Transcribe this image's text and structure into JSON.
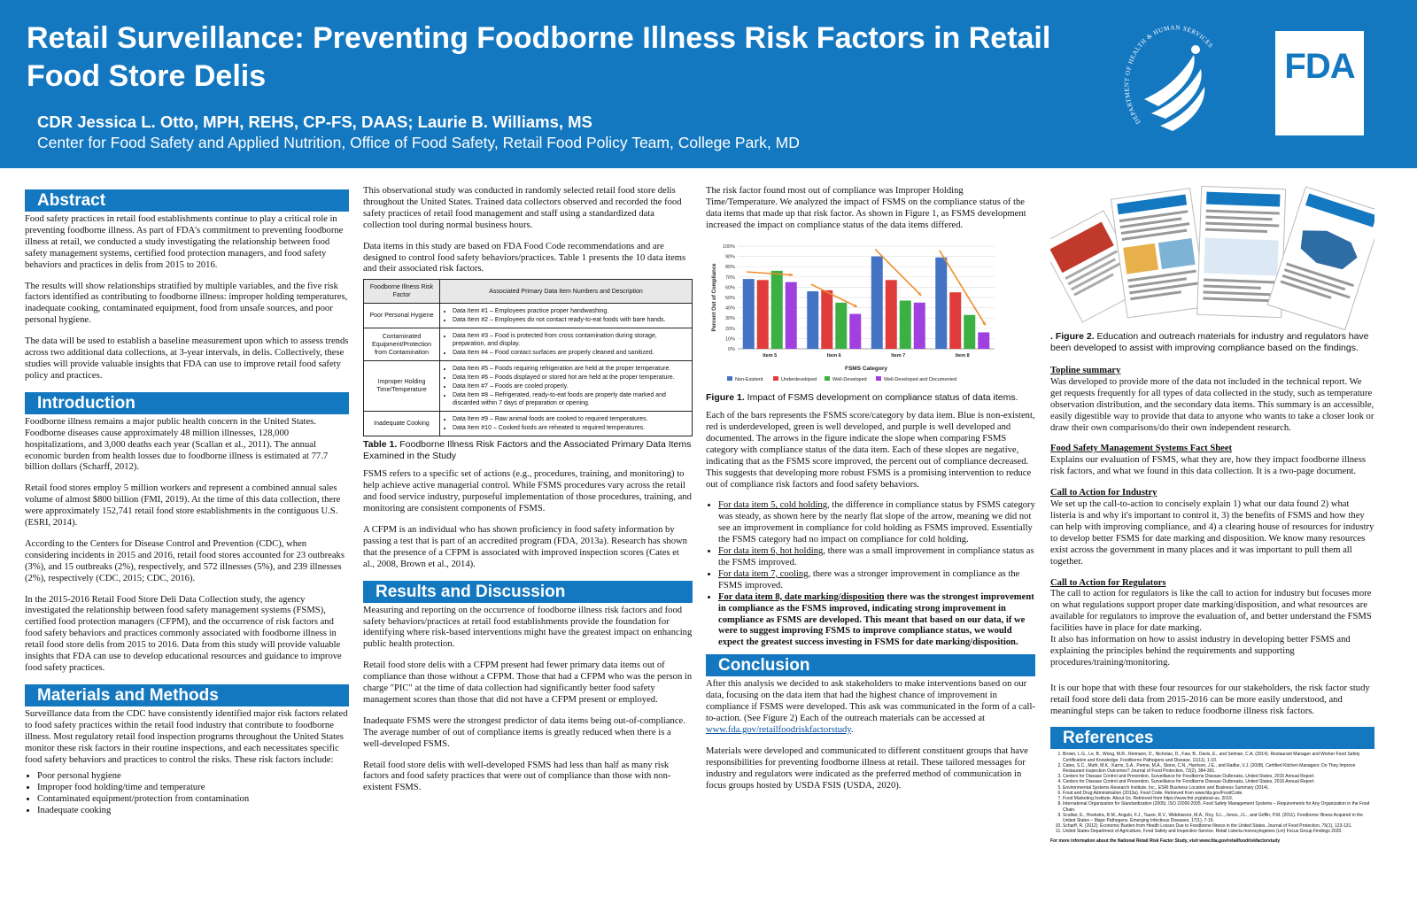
{
  "header": {
    "title": "Retail Surveillance: Preventing Foodborne Illness Risk Factors in Retail Food Store Delis",
    "authors": "CDR Jessica L. Otto, MPH, REHS, CP-FS, DAAS; Laurie B. Williams, MS",
    "affiliation": "Center for Food Safety and Applied Nutrition, Office of Food Safety, Retail Food Policy Team, College Park, MD",
    "seal_label": "DEPARTMENT OF HEALTH & HUMAN SERVICES-USA",
    "fda_logo": "FDA",
    "brand_color": "#1478c0"
  },
  "abstract": {
    "heading": "Abstract",
    "p1": "Food safety practices in retail food establishments continue to play a critical role in preventing foodborne illness. As part of FDA's commitment to preventing foodborne illness at retail, we conducted a study investigating the relationship between food safety management systems, certified food protection managers, and food safety behaviors and practices in delis from 2015 to 2016.",
    "p2": "The results will show relationships stratified by multiple variables, and the five risk factors identified as contributing to foodborne illness: improper holding temperatures, inadequate cooking, contaminated equipment, food from unsafe sources, and poor personal hygiene.",
    "p3": "The data will be used to establish a baseline measurement upon which to assess trends across two additional data collections, at 3-year intervals, in delis. Collectively, these studies will provide valuable insights that FDA can use to improve retail food safety policy and practices."
  },
  "introduction": {
    "heading": "Introduction",
    "p1": "Foodborne illness remains a major public health concern in the United States. Foodborne diseases cause approximately 48 million illnesses, 128,000 hospitalizations, and 3,000 deaths each year (Scallan et al., 2011). The annual economic burden from health losses due to foodborne illness is estimated at 77.7 billion dollars (Scharff, 2012).",
    "p2": "Retail food stores employ 5 million workers and represent a combined annual sales volume of almost $800 billion (FMI, 2019). At the time of this data collection, there were approximately 152,741 retail food store establishments in the contiguous U.S. (ESRI, 2014).",
    "p3": "According to the Centers for Disease Control and Prevention (CDC), when considering incidents in 2015 and 2016, retail food stores accounted for 23 outbreaks (3%), and 15 outbreaks (2%), respectively, and 572 illnesses (5%), and 239 illnesses (2%), respectively (CDC, 2015; CDC, 2016).",
    "p4": "In the 2015-2016 Retail Food Store Deli Data Collection study, the agency investigated the relationship between food safety management systems (FSMS), certified food protection managers (CFPM), and the occurrence of risk factors and food safety behaviors and practices commonly associated with foodborne illness in retail food store delis from 2015 to 2016. Data from this study will provide valuable insights that FDA can use to develop educational resources and guidance to improve food safety practices."
  },
  "methods": {
    "heading": "Materials and Methods",
    "p1": "Surveillance data from the CDC have consistently identified major risk factors related to food safety practices within the retail food industry that contribute to foodborne illness. Most regulatory retail food inspection programs throughout the United States monitor these risk factors in their routine inspections, and each necessitates specific food safety behaviors and practices to control the risks. These risk factors include:",
    "bullets": [
      "Poor personal hygiene",
      "Improper food holding/time and temperature",
      "Contaminated equipment/protection from contamination",
      "Inadequate cooking"
    ],
    "p2": "This observational study was conducted in randomly selected retail food store delis throughout the United States. Trained data collectors observed and recorded the food safety practices of retail food management and staff using a standardized data collection tool during normal business hours.",
    "p3": "Data items in this study are based on FDA Food Code recommendations and are designed to control food safety behaviors/practices. Table 1 presents the 10 data items and their associated risk factors.",
    "table": {
      "col1": "Foodborne Illness Risk Factor",
      "col2": "Associated Primary Data Item Numbers and Description",
      "rows": [
        {
          "factor": "Poor Personal Hygiene",
          "items": [
            "Data Item #1 – Employees practice proper handwashing.",
            "Data Item #2 – Employees do not contact ready-to-eat foods with bare hands."
          ]
        },
        {
          "factor": "Contaminated Equipment/Protection from Contamination",
          "items": [
            "Data Item #3 – Food is protected from cross contamination during storage, preparation, and display.",
            "Data Item #4 – Food contact surfaces are properly cleaned and sanitized."
          ]
        },
        {
          "factor": "Improper Holding Time/Temperature",
          "items": [
            "Data Item #5 – Foods requiring refrigeration are held at the proper temperature.",
            "Data Item #6 – Foods displayed or stored hot are held at the proper temperature.",
            "Data Item #7 – Foods are cooled properly.",
            "Data Item #8 – Refrigerated, ready-to-eat foods are properly date marked and discarded within 7 days of preparation or opening."
          ]
        },
        {
          "factor": "Inadequate Cooking",
          "items": [
            "Data Item #9 – Raw animal foods are cooked to required temperatures.",
            "Data Item #10 – Cooked foods are reheated to required temperatures."
          ]
        }
      ]
    },
    "table_caption_label": "Table 1.",
    "table_caption": " Foodborne Illness Risk Factors and the Associated Primary Data Items Examined in the Study",
    "p4": "FSMS refers to a specific set of actions (e.g., procedures, training, and monitoring) to help achieve active managerial control. While FSMS procedures vary across the retail and food service industry, purposeful implementation of those procedures, training, and monitoring are consistent components of FSMS.",
    "p5": "A CFPM is an individual who has shown proficiency in food safety information by passing a test that is part of an accredited program (FDA, 2013a). Research has shown that the presence of a CFPM is associated with improved inspection scores (Cates et al., 2008, Brown et al., 2014)."
  },
  "results": {
    "heading": "Results and Discussion",
    "p1": "Measuring and reporting on the occurrence of foodborne illness risk factors and food safety behaviors/practices at retail food establishments provide the foundation for identifying where risk-based interventions might have the greatest impact on enhancing public health protection.",
    "p2": "Retail food store delis with a CFPM present had fewer primary data items out of compliance than those without a CFPM. Those that had a CFPM who was the person in charge \"PIC\" at the time of data collection had significantly better food safety management scores than those that did not have a CFPM present or employed.",
    "p3": "Inadequate FSMS were the strongest predictor of data items being out-of-compliance. The average number of out of compliance items is greatly reduced when there is a well-developed FSMS.",
    "p4": "Retail food store delis with well-developed FSMS had less than half as many risk factors and food safety practices that were out of compliance than those with non-existent FSMS.",
    "p5": "The risk factor found most out of compliance was Improper Holding Time/Temperature. We analyzed the impact of FSMS on the compliance status of the data items that made up that risk factor. As shown in Figure 1, as FSMS development increased the impact on compliance status of the data items differed.",
    "fig1_label": "Figure 1.",
    "fig1_caption": " Impact of FSMS development on compliance status of data items.",
    "p6": "Each of the bars represents the FSMS score/category by data item. Blue is non-existent, red is underdeveloped, green is well developed, and purple is well developed and documented. The arrows in the figure indicate the slope when comparing FSMS category with compliance status of the data item. Each of these slopes are negative, indicating that as the FSMS score improved, the percent out of compliance decreased. This suggests that developing more robust FSMS is a promising intervention to reduce out of compliance risk factors and food safety behaviors.",
    "b1_link": "For data item 5, cold holding",
    "b1_text": ", the difference in compliance status by FSMS category was steady, as shown here by the nearly flat slope of the arrow, meaning we did not see an improvement in compliance for cold holding as FSMS improved. Essentially the FSMS category had no impact on compliance for cold holding.",
    "b2_link": "For data item 6, hot holding",
    "b2_text": ", there was a small improvement in compliance status as the FSMS improved.",
    "b3_link": "For data item 7, cooling",
    "b3_text": ", there was a stronger improvement in compliance as the FSMS improved.",
    "b4_link": "For data item 8, date marking/disposition",
    "b4_text": " there was the strongest improvement in compliance as the FSMS improved, indicating strong improvement in compliance as FSMS are developed. This meant that based on our data, if we were to suggest improving FSMS to improve compliance status, we would expect the greatest success investing in FSMS for date marking/disposition."
  },
  "chart_data": {
    "type": "bar",
    "categories": [
      "Item 5",
      "Item 6",
      "Item 7",
      "Item 8"
    ],
    "series": [
      {
        "name": "Non-Existent",
        "color": "#4472c4",
        "values": [
          68,
          56,
          90,
          89
        ]
      },
      {
        "name": "Underdeveloped",
        "color": "#e03c3c",
        "values": [
          67,
          57,
          67,
          55
        ]
      },
      {
        "name": "Well-Developed",
        "color": "#3cb043",
        "values": [
          76,
          45,
          47,
          33
        ]
      },
      {
        "name": "Well-Developed and Documented",
        "color": "#a040e0",
        "values": [
          65,
          34,
          45,
          16
        ]
      }
    ],
    "xlabel": "FSMS Category",
    "ylabel": "Percent Out of Compliance",
    "ylim": [
      0,
      100
    ],
    "yticks": [
      "0%",
      "10%",
      "20%",
      "30%",
      "40%",
      "50%",
      "60%",
      "70%",
      "80%",
      "90%",
      "100%"
    ],
    "legend": "bottom",
    "arrow_color": "#f08c2c"
  },
  "conclusion": {
    "heading": "Conclusion",
    "p1_a": "After this analysis we decided to ask stakeholders to make interventions based on our data, focusing on the data item that had the highest chance of improvement in compliance if FSMS were developed. This ask was communicated in the form of a call-to-action. (See Figure 2) Each of the outreach materials can be accessed at ",
    "p1_link": "www.fda.gov/retailfoodriskfactorstudy",
    "p1_b": ".",
    "p2": "Materials were developed and communicated to different constituent groups that have responsibilities for preventing foodborne illness at retail. These tailored messages for industry and regulators were indicated as the preferred method of communication in focus groups hosted by USDA FSIS (USDA, 2020)."
  },
  "outreach": {
    "fig2_label": ". Figure 2.",
    "fig2_caption": " Education and outreach materials for industry and regulators have been developed to assist with improving compliance based on the findings.",
    "s1_title": "Topline summary",
    "s1_text": "Was developed to provide more of the data not included in the technical report. We get requests frequently for all types of data collected in the study, such as temperature observation distribution, and the secondary data items. This summary is an accessible, easily digestible way to provide that data to anyone who wants to take a closer look or draw their own comparisons/do their own independent research.",
    "s2_title": "Food Safety Management Systems Fact Sheet",
    "s2_text": "Explains our evaluation of FSMS, what they are, how they impact foodborne illness risk factors, and what we found in this data collection. It is a two-page document.",
    "s3_title": "Call to Action for Industry",
    "s3_text": "We set up the call-to-action to concisely explain 1) what our data found 2) what listeria is and why it's important to control it, 3) the benefits of FSMS and how they can help with improving compliance, and 4) a clearing house of resources for industry to develop better FSMS for date marking and disposition. We know many resources exist across the government in many places and it was important to pull them all together.",
    "s4_title": "Call to Action for Regulators",
    "s4_text1": "The call to action for regulators is like the call to action for industry but focuses more on what regulations support proper date marking/disposition, and what resources are available for regulators to improve the evaluation of, and better understand the FSMS facilities have in place for date marking.",
    "s4_text2": "It also has information on how to assist industry in developing better FSMS and explaining the principles behind the requirements and supporting procedures/training/monitoring.",
    "closing": "It is our hope that with these four resources for our stakeholders, the risk factor study retail food store deli data from 2015-2016 can be more easily understood, and meaningful steps can be taken to reduce foodborne illness risk factors."
  },
  "references": {
    "heading": "References",
    "items": [
      "Brown, L.G., Le, B., Wong, M.R., Reimann, D., Nicholas, D., Faw, B., Davis, E., and Selman, C.A. (2014). Restaurant Manager and Worker Food Safety Certification and Knowledge. Foodborne Pathogens and Disease, 11(11), 1-10.",
      "Cates, S.C., Muth, M.K., Karns, S.A., Penne, M.A., Stone, C.N., Harrison, J.E., and Radke, V.J. (2008). Certified Kitchen Managers: Do They Improve Restaurant Inspection Outcomes? Journal of Food Protection, 72(2), 384-391.",
      "Centers for Disease Control and Prevention. Surveillance for Foodborne Disease Outbreaks, United States, 2015 Annual Report.",
      "Centers for Disease Control and Prevention. Surveillance for Foodborne Disease Outbreaks, United States, 2016 Annual Report.",
      "Environmental Systems Research Institute, Inc., ESRI Business Location and Business Summary (2014).",
      "Food and Drug Administration (2013a). Food Code. Retrieved from www.fda.gov/FoodCode.",
      "Food Marketing Institute. About Us. Retrieved from https://www.fmi.org/about-us, 2019.",
      "International Organization for Standardization (2005). ISO 22000:2005. Food Safety Management Systems – Requirements for Any Organization in the Food Chain.",
      "Scallan, E., Hoekstra, R.M., Angulo, F.J., Tauxe, R.V., Widdowson, M.A., Roy, S.L., Jones, J.L., and Griffin, P.M. (2011). Foodborne Illness Acquired in the United States – Major Pathogens. Emerging Infectious Diseases, 17(1), 7-15.",
      "Scharff, R. (2012). Economic Burden from Health Losses Due to Foodborne Illness in the United States. Journal of Food Protection, 75(1), 123-131.",
      "United States Department of Agriculture, Food Safety and Inspection Service. Retail Listeria monocytogenes (Lm) Focus Group Findings 2020."
    ],
    "footer": "For more information about the National Retail Risk Factor Study, visit www.fda.gov/retailfoodriskfactorstudy"
  }
}
